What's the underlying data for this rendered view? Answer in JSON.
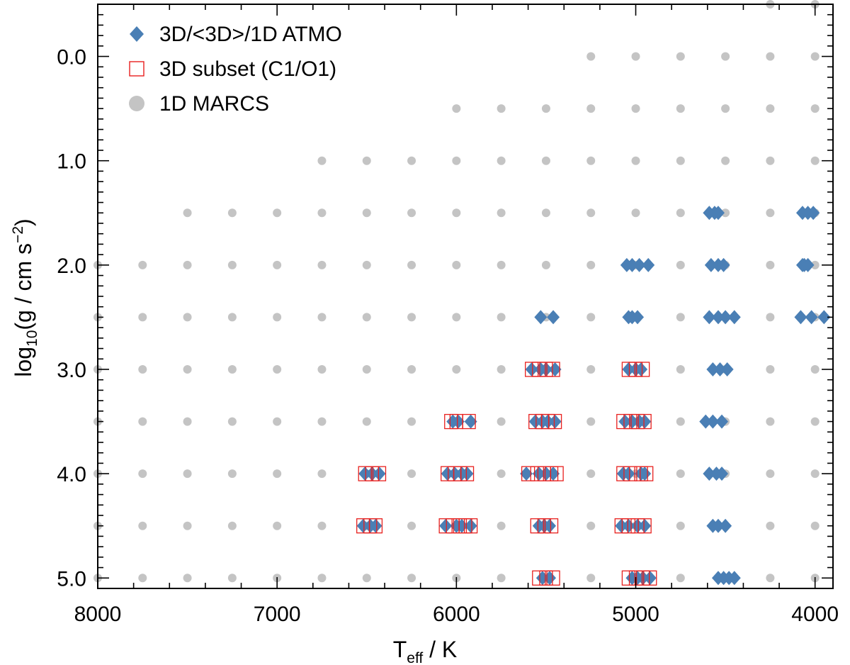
{
  "chart_data": {
    "type": "scatter",
    "xlabel": {
      "main": "T",
      "sub": "eff",
      "rest": " / K"
    },
    "ylabel": {
      "pre": "log",
      "sub": "10",
      "mid": "(g / cm s",
      "sup": "−2",
      "post": ")"
    },
    "xlim": [
      8000,
      3900
    ],
    "ylim": [
      5.1,
      -0.5
    ],
    "x_reversed": true,
    "y_reversed": true,
    "x_ticks": [
      8000,
      7000,
      6000,
      5000,
      4000
    ],
    "x_tick_labels": [
      "8000",
      "7000",
      "6000",
      "5000",
      "4000"
    ],
    "y_ticks": [
      0,
      1,
      2,
      3,
      4,
      5
    ],
    "y_tick_labels": [
      "0.0",
      "1.0",
      "2.0",
      "3.0",
      "4.0",
      "5.0"
    ],
    "legend": {
      "placement": "top-left",
      "entries": [
        "3D/<3D>/1D ATMO",
        "3D subset (C1/O1)",
        "1D MARCS"
      ]
    },
    "colors": {
      "atmo": "#4a7fb5",
      "subset": "#e8201e",
      "marcs": "#c4c4c4",
      "axis": "#000000"
    },
    "series": [
      {
        "name": "1D MARCS",
        "marker": "circle",
        "grid": [
          {
            "logg": -0.5,
            "teff": [
              4250,
              4000
            ]
          },
          {
            "logg": 0.0,
            "teff": [
              5250,
              5000,
              4750,
              4500,
              4250,
              4000
            ]
          },
          {
            "logg": 0.5,
            "teff": [
              6000,
              5750,
              5500,
              5250,
              5000,
              4750,
              4500,
              4250,
              4000
            ]
          },
          {
            "logg": 1.0,
            "teff": [
              6750,
              6500,
              6250,
              6000,
              5750,
              5500,
              5250,
              5000,
              4750,
              4500,
              4250,
              4000
            ]
          },
          {
            "logg": 1.5,
            "teff": [
              7500,
              7250,
              7000,
              6750,
              6500,
              6250,
              6000,
              5750,
              5500,
              5250,
              5000,
              4750,
              4500,
              4250,
              4000
            ]
          },
          {
            "logg": 2.0,
            "teff": [
              8000,
              7750,
              7500,
              7250,
              7000,
              6750,
              6500,
              6250,
              6000,
              5750,
              5500,
              5250,
              5000,
              4750,
              4500,
              4250,
              4000
            ]
          },
          {
            "logg": 2.5,
            "teff": [
              8000,
              7750,
              7500,
              7250,
              7000,
              6750,
              6500,
              6250,
              6000,
              5750,
              5500,
              5250,
              5000,
              4750,
              4500,
              4250,
              4000
            ]
          },
          {
            "logg": 3.0,
            "teff": [
              8000,
              7750,
              7500,
              7250,
              7000,
              6750,
              6500,
              6250,
              6000,
              5750,
              5500,
              5250,
              5000,
              4750,
              4500,
              4250,
              4000
            ]
          },
          {
            "logg": 3.5,
            "teff": [
              8000,
              7750,
              7500,
              7250,
              7000,
              6750,
              6500,
              6250,
              6000,
              5750,
              5500,
              5250,
              5000,
              4750,
              4500,
              4250,
              4000
            ]
          },
          {
            "logg": 4.0,
            "teff": [
              8000,
              7750,
              7500,
              7250,
              7000,
              6750,
              6500,
              6250,
              6000,
              5750,
              5500,
              5250,
              5000,
              4750,
              4500,
              4250,
              4000
            ]
          },
          {
            "logg": 4.5,
            "teff": [
              8000,
              7750,
              7500,
              7250,
              7000,
              6750,
              6500,
              6250,
              6000,
              5750,
              5500,
              5250,
              5000,
              4750,
              4500,
              4250,
              4000
            ]
          },
          {
            "logg": 5.0,
            "teff": [
              8000,
              7750,
              7500,
              7250,
              7000,
              6750,
              6500,
              6250,
              6000,
              5750,
              5500,
              5250,
              5000,
              4750,
              4500,
              4250,
              4000
            ]
          }
        ]
      },
      {
        "name": "3D/<3D>/1D ATMO",
        "marker": "diamond",
        "points": [
          {
            "x": 4590,
            "y": 1.5
          },
          {
            "x": 4560,
            "y": 1.5
          },
          {
            "x": 4540,
            "y": 1.5
          },
          {
            "x": 4070,
            "y": 1.5
          },
          {
            "x": 4040,
            "y": 1.5
          },
          {
            "x": 4010,
            "y": 1.5
          },
          {
            "x": 5050,
            "y": 2.0
          },
          {
            "x": 5020,
            "y": 2.0
          },
          {
            "x": 4980,
            "y": 2.0
          },
          {
            "x": 4930,
            "y": 2.0
          },
          {
            "x": 4580,
            "y": 2.0
          },
          {
            "x": 4540,
            "y": 2.0
          },
          {
            "x": 4510,
            "y": 2.0
          },
          {
            "x": 4070,
            "y": 2.0
          },
          {
            "x": 4060,
            "y": 2.0
          },
          {
            "x": 4040,
            "y": 2.0
          },
          {
            "x": 5530,
            "y": 2.5
          },
          {
            "x": 5460,
            "y": 2.5
          },
          {
            "x": 5040,
            "y": 2.5
          },
          {
            "x": 5020,
            "y": 2.5
          },
          {
            "x": 4990,
            "y": 2.5
          },
          {
            "x": 4590,
            "y": 2.5
          },
          {
            "x": 4540,
            "y": 2.5
          },
          {
            "x": 4500,
            "y": 2.5
          },
          {
            "x": 4450,
            "y": 2.5
          },
          {
            "x": 4080,
            "y": 2.5
          },
          {
            "x": 4020,
            "y": 2.5
          },
          {
            "x": 3950,
            "y": 2.5
          },
          {
            "x": 5580,
            "y": 3.0
          },
          {
            "x": 5530,
            "y": 3.0
          },
          {
            "x": 5500,
            "y": 3.0
          },
          {
            "x": 5450,
            "y": 3.0
          },
          {
            "x": 5040,
            "y": 3.0
          },
          {
            "x": 5000,
            "y": 3.0
          },
          {
            "x": 4970,
            "y": 3.0
          },
          {
            "x": 4570,
            "y": 3.0
          },
          {
            "x": 4530,
            "y": 3.0
          },
          {
            "x": 4490,
            "y": 3.0
          },
          {
            "x": 6020,
            "y": 3.5
          },
          {
            "x": 5990,
            "y": 3.5
          },
          {
            "x": 5920,
            "y": 3.5
          },
          {
            "x": 5560,
            "y": 3.5
          },
          {
            "x": 5520,
            "y": 3.5
          },
          {
            "x": 5490,
            "y": 3.5
          },
          {
            "x": 5450,
            "y": 3.5
          },
          {
            "x": 5060,
            "y": 3.5
          },
          {
            "x": 5020,
            "y": 3.5
          },
          {
            "x": 4980,
            "y": 3.5
          },
          {
            "x": 4950,
            "y": 3.5
          },
          {
            "x": 4610,
            "y": 3.5
          },
          {
            "x": 4570,
            "y": 3.5
          },
          {
            "x": 4520,
            "y": 3.5
          },
          {
            "x": 6510,
            "y": 4.0
          },
          {
            "x": 6470,
            "y": 4.0
          },
          {
            "x": 6430,
            "y": 4.0
          },
          {
            "x": 6050,
            "y": 4.0
          },
          {
            "x": 6010,
            "y": 4.0
          },
          {
            "x": 5970,
            "y": 4.0
          },
          {
            "x": 5940,
            "y": 4.0
          },
          {
            "x": 5610,
            "y": 4.0
          },
          {
            "x": 5540,
            "y": 4.0
          },
          {
            "x": 5500,
            "y": 4.0
          },
          {
            "x": 5460,
            "y": 4.0
          },
          {
            "x": 5070,
            "y": 4.0
          },
          {
            "x": 5040,
            "y": 4.0
          },
          {
            "x": 4970,
            "y": 4.0
          },
          {
            "x": 4950,
            "y": 4.0
          },
          {
            "x": 4590,
            "y": 4.0
          },
          {
            "x": 4550,
            "y": 4.0
          },
          {
            "x": 4520,
            "y": 4.0
          },
          {
            "x": 6520,
            "y": 4.5
          },
          {
            "x": 6480,
            "y": 4.5
          },
          {
            "x": 6450,
            "y": 4.5
          },
          {
            "x": 6060,
            "y": 4.5
          },
          {
            "x": 6000,
            "y": 4.5
          },
          {
            "x": 5970,
            "y": 4.5
          },
          {
            "x": 5920,
            "y": 4.5
          },
          {
            "x": 5540,
            "y": 4.5
          },
          {
            "x": 5510,
            "y": 4.5
          },
          {
            "x": 5480,
            "y": 4.5
          },
          {
            "x": 5080,
            "y": 4.5
          },
          {
            "x": 5040,
            "y": 4.5
          },
          {
            "x": 4990,
            "y": 4.5
          },
          {
            "x": 4950,
            "y": 4.5
          },
          {
            "x": 4570,
            "y": 4.5
          },
          {
            "x": 4540,
            "y": 4.5
          },
          {
            "x": 4500,
            "y": 4.5
          },
          {
            "x": 5520,
            "y": 5.0
          },
          {
            "x": 5480,
            "y": 5.0
          },
          {
            "x": 5020,
            "y": 5.0
          },
          {
            "x": 4990,
            "y": 5.0
          },
          {
            "x": 4960,
            "y": 5.0
          },
          {
            "x": 4920,
            "y": 5.0
          },
          {
            "x": 4540,
            "y": 5.0
          },
          {
            "x": 4510,
            "y": 5.0
          },
          {
            "x": 4480,
            "y": 5.0
          },
          {
            "x": 4450,
            "y": 5.0
          }
        ]
      },
      {
        "name": "3D subset (C1/O1)",
        "marker": "open-square",
        "points": [
          {
            "x": 5580,
            "y": 3.0
          },
          {
            "x": 5540,
            "y": 3.0
          },
          {
            "x": 5500,
            "y": 3.0
          },
          {
            "x": 5460,
            "y": 3.0
          },
          {
            "x": 5040,
            "y": 3.0
          },
          {
            "x": 5000,
            "y": 3.0
          },
          {
            "x": 4960,
            "y": 3.0
          },
          {
            "x": 6030,
            "y": 3.5
          },
          {
            "x": 6000,
            "y": 3.5
          },
          {
            "x": 5930,
            "y": 3.5
          },
          {
            "x": 5560,
            "y": 3.5
          },
          {
            "x": 5520,
            "y": 3.5
          },
          {
            "x": 5490,
            "y": 3.5
          },
          {
            "x": 5450,
            "y": 3.5
          },
          {
            "x": 5070,
            "y": 3.5
          },
          {
            "x": 5030,
            "y": 3.5
          },
          {
            "x": 4990,
            "y": 3.5
          },
          {
            "x": 4950,
            "y": 3.5
          },
          {
            "x": 6510,
            "y": 4.0
          },
          {
            "x": 6470,
            "y": 4.0
          },
          {
            "x": 6430,
            "y": 4.0
          },
          {
            "x": 6050,
            "y": 4.0
          },
          {
            "x": 6010,
            "y": 4.0
          },
          {
            "x": 5980,
            "y": 4.0
          },
          {
            "x": 5940,
            "y": 4.0
          },
          {
            "x": 5600,
            "y": 4.0
          },
          {
            "x": 5550,
            "y": 4.0
          },
          {
            "x": 5510,
            "y": 4.0
          },
          {
            "x": 5470,
            "y": 4.0
          },
          {
            "x": 5440,
            "y": 4.0
          },
          {
            "x": 5070,
            "y": 4.0
          },
          {
            "x": 5030,
            "y": 4.0
          },
          {
            "x": 4970,
            "y": 4.0
          },
          {
            "x": 4940,
            "y": 4.0
          },
          {
            "x": 6520,
            "y": 4.5
          },
          {
            "x": 6480,
            "y": 4.5
          },
          {
            "x": 6450,
            "y": 4.5
          },
          {
            "x": 6060,
            "y": 4.5
          },
          {
            "x": 6020,
            "y": 4.5
          },
          {
            "x": 5980,
            "y": 4.5
          },
          {
            "x": 5950,
            "y": 4.5
          },
          {
            "x": 5920,
            "y": 4.5
          },
          {
            "x": 5550,
            "y": 4.5
          },
          {
            "x": 5510,
            "y": 4.5
          },
          {
            "x": 5470,
            "y": 4.5
          },
          {
            "x": 5080,
            "y": 4.5
          },
          {
            "x": 5040,
            "y": 4.5
          },
          {
            "x": 4990,
            "y": 4.5
          },
          {
            "x": 4950,
            "y": 4.5
          },
          {
            "x": 5540,
            "y": 5.0
          },
          {
            "x": 5500,
            "y": 5.0
          },
          {
            "x": 5460,
            "y": 5.0
          },
          {
            "x": 5040,
            "y": 5.0
          },
          {
            "x": 5000,
            "y": 5.0
          },
          {
            "x": 4960,
            "y": 5.0
          },
          {
            "x": 4920,
            "y": 5.0
          }
        ]
      }
    ]
  }
}
